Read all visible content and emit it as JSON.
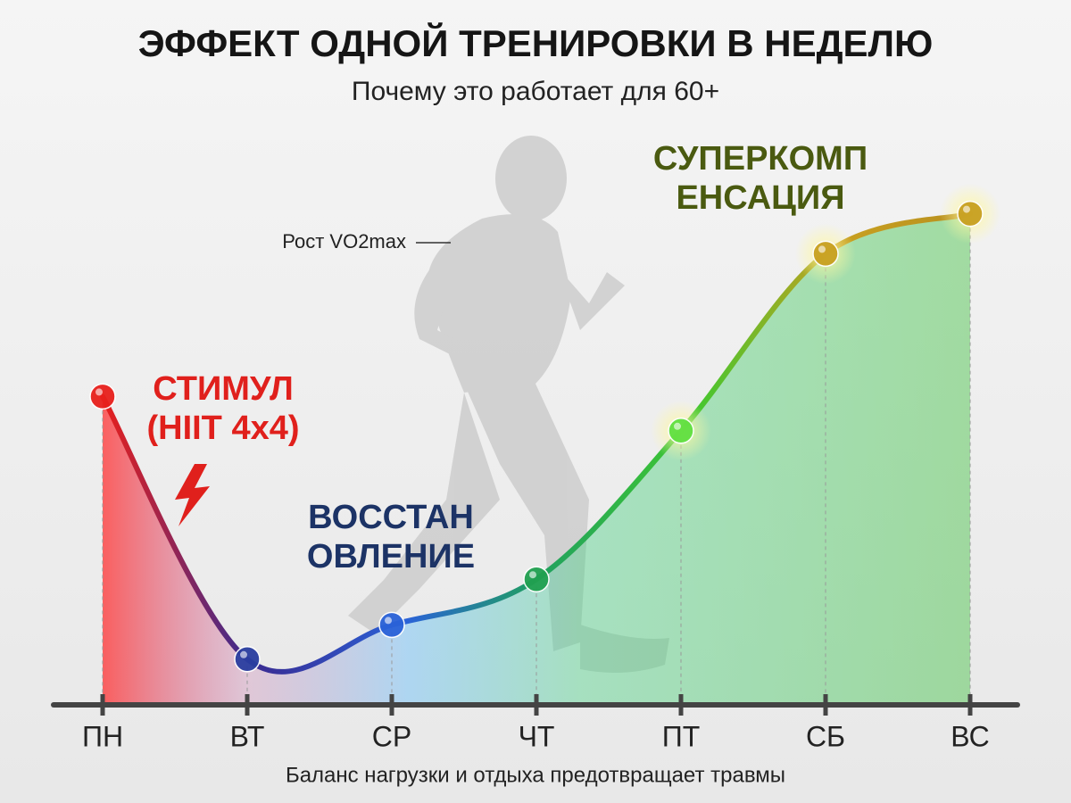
{
  "chart_data": {
    "type": "line",
    "title": "ЭФФЕКТ ОДНОЙ ТРЕНИРОВКИ В НЕДЕЛЮ",
    "subtitle": "Почему это работает для 60+",
    "categories": [
      "ПН",
      "ВТ",
      "СР",
      "ЧТ",
      "ПТ",
      "СБ",
      "ВС"
    ],
    "values": [
      54,
      8,
      14,
      22,
      48,
      79,
      86
    ],
    "point_colors": [
      "#e8201c",
      "#2a3ea0",
      "#2a62d8",
      "#20a050",
      "#60e040",
      "#c8a020",
      "#c8a020"
    ],
    "ylim": [
      0,
      100
    ],
    "annotations": [
      {
        "lines": [
          "СТИМУЛ",
          "(HIIT 4x4)"
        ],
        "color": "#e0201c"
      },
      {
        "lines": [
          "ВОССТАН",
          "ОВЛЕНИЕ"
        ],
        "color": "#1c3366"
      },
      {
        "lines": [
          "СУПЕРКОМП",
          "ЕНСАЦИЯ"
        ],
        "color": "#4a5a10"
      }
    ],
    "callout": "Рост VO2max",
    "footnote": "Баланс нагрузки и отдыха предотвращает травмы"
  }
}
